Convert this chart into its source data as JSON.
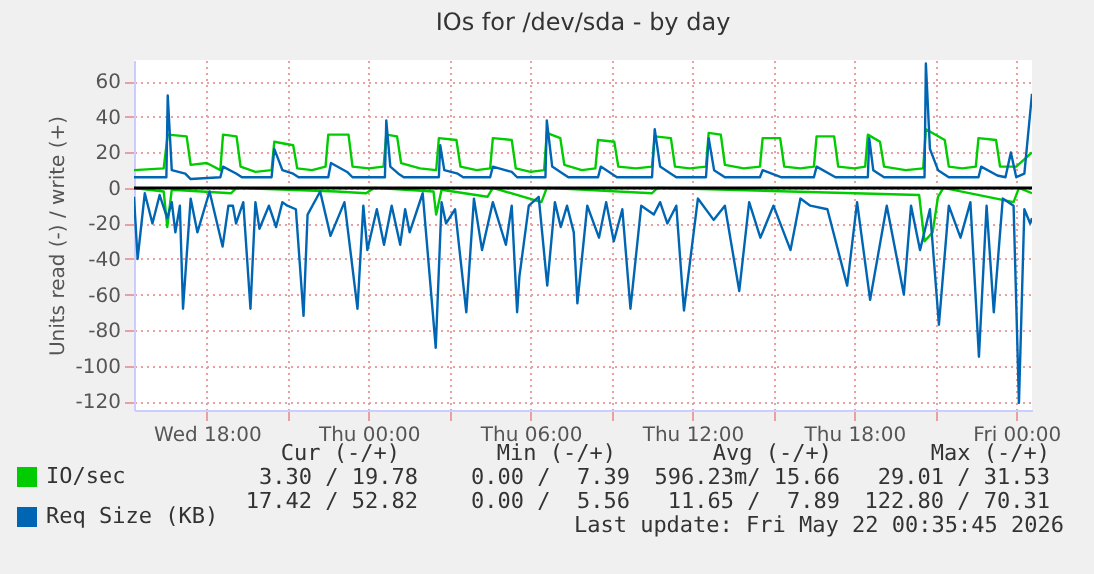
{
  "chart_data": {
    "type": "line",
    "title": "IOs for /dev/sda - by day",
    "ylabel": "Units read (-) / write (+)",
    "xlim": [
      "2026-05-20T15:18",
      "2026-05-22T00:35"
    ],
    "xticks": [
      {
        "value": "2026-05-20T18:00",
        "label": "Wed 18:00"
      },
      {
        "value": "2026-05-20T21:00",
        "label": null
      },
      {
        "value": "2026-05-21T00:00",
        "label": "Thu 00:00"
      },
      {
        "value": "2026-05-21T03:00",
        "label": null
      },
      {
        "value": "2026-05-21T06:00",
        "label": "Thu 06:00"
      },
      {
        "value": "2026-05-21T09:00",
        "label": null
      },
      {
        "value": "2026-05-21T12:00",
        "label": "Thu 12:00"
      },
      {
        "value": "2026-05-21T15:00",
        "label": null
      },
      {
        "value": "2026-05-21T18:00",
        "label": "Thu 18:00"
      },
      {
        "value": "2026-05-21T21:00",
        "label": null
      },
      {
        "value": "2026-05-22T00:00",
        "label": "Fri 00:00"
      }
    ],
    "ylim": [
      -125,
      72
    ],
    "yticks": [
      -120,
      -100,
      -80,
      -60,
      -40,
      -20,
      0,
      20,
      40,
      60
    ],
    "grid": true,
    "legend": "bottom",
    "marker": "none",
    "line_style": "solid",
    "ref_lines": [
      {
        "axis": "y",
        "value": 0,
        "color": "#000000"
      }
    ],
    "annotations": [
      "Cur (-/+)",
      "Min (-/+)",
      "Avg (-/+)",
      "Max (-/+)",
      "3.30 / 19.78",
      "0.00 /  7.39",
      "596.23m/ 15.66",
      "29.01 / 31.53",
      "17.42 / 52.82",
      "0.00 /  5.56",
      "11.65 /  7.89",
      "122.80 / 70.31",
      "Last update: Fri May 22 00:35:45 2026"
    ],
    "series": [
      {
        "color": "#00cc00",
        "x": [
          "2026-05-20T15:18",
          "2026-05-20T16:24",
          "2026-05-20T16:32",
          "2026-05-20T16:42",
          "2026-05-20T18:54",
          "2026-05-20T19:06",
          "2026-05-20T22:48",
          "2026-05-20T23:54",
          "2026-05-21T00:12",
          "2026-05-21T02:24",
          "2026-05-21T02:30",
          "2026-05-21T02:42",
          "2026-05-21T04:24",
          "2026-05-21T04:36",
          "2026-05-21T06:24",
          "2026-05-21T06:36",
          "2026-05-21T10:30",
          "2026-05-21T10:42",
          "2026-05-21T20:24",
          "2026-05-21T20:36",
          "2026-05-21T20:54",
          "2026-05-21T21:06",
          "2026-05-21T21:18",
          "2026-05-21T23:54",
          "2026-05-22T00:06",
          "2026-05-22T00:35"
        ],
        "values": [
          0,
          -2,
          -22,
          -1,
          -3,
          0,
          -2,
          -3,
          0,
          -2,
          -15,
          -1,
          -5,
          0,
          -8,
          0,
          -3,
          0,
          -4,
          -30,
          -25,
          -5,
          0,
          -8,
          0,
          -3
        ]
      },
      {
        "name": "IO/sec",
        "color": "#00cc00",
        "x": [
          "2026-05-20T15:18",
          "2026-05-20T16:24",
          "2026-05-20T16:33",
          "2026-05-20T17:15",
          "2026-05-20T17:24",
          "2026-05-20T18:00",
          "2026-05-20T18:30",
          "2026-05-20T18:36",
          "2026-05-20T19:06",
          "2026-05-20T19:15",
          "2026-05-20T19:48",
          "2026-05-20T20:24",
          "2026-05-20T20:30",
          "2026-05-20T21:12",
          "2026-05-20T21:21",
          "2026-05-20T21:54",
          "2026-05-20T22:24",
          "2026-05-20T22:30",
          "2026-05-20T23:15",
          "2026-05-20T23:24",
          "2026-05-21T00:00",
          "2026-05-21T00:33",
          "2026-05-21T00:39",
          "2026-05-21T01:03",
          "2026-05-21T01:12",
          "2026-05-21T01:54",
          "2026-05-21T02:30",
          "2026-05-21T02:36",
          "2026-05-21T03:15",
          "2026-05-21T03:24",
          "2026-05-21T04:00",
          "2026-05-21T04:30",
          "2026-05-21T04:36",
          "2026-05-21T05:18",
          "2026-05-21T05:27",
          "2026-05-21T06:00",
          "2026-05-21T06:30",
          "2026-05-21T06:36",
          "2026-05-21T07:06",
          "2026-05-21T07:15",
          "2026-05-21T07:54",
          "2026-05-21T08:24",
          "2026-05-21T08:30",
          "2026-05-21T09:06",
          "2026-05-21T09:15",
          "2026-05-21T09:54",
          "2026-05-21T10:30",
          "2026-05-21T10:36",
          "2026-05-21T11:12",
          "2026-05-21T11:21",
          "2026-05-21T11:54",
          "2026-05-21T12:30",
          "2026-05-21T12:36",
          "2026-05-21T13:03",
          "2026-05-21T13:12",
          "2026-05-21T13:54",
          "2026-05-21T14:30",
          "2026-05-21T14:36",
          "2026-05-21T15:15",
          "2026-05-21T15:24",
          "2026-05-21T16:00",
          "2026-05-21T16:30",
          "2026-05-21T16:36",
          "2026-05-21T17:15",
          "2026-05-21T17:24",
          "2026-05-21T18:00",
          "2026-05-21T18:24",
          "2026-05-21T18:30",
          "2026-05-21T18:57",
          "2026-05-21T19:06",
          "2026-05-21T19:54",
          "2026-05-21T20:33",
          "2026-05-21T20:39",
          "2026-05-21T21:21",
          "2026-05-21T21:30",
          "2026-05-21T22:00",
          "2026-05-21T22:30",
          "2026-05-21T22:36",
          "2026-05-21T23:15",
          "2026-05-21T23:24",
          "2026-05-22T00:00",
          "2026-05-22T00:35"
        ],
        "values": [
          10,
          11,
          30,
          29,
          13,
          14,
          10,
          30,
          29,
          12,
          9,
          10,
          26,
          24,
          11,
          10,
          12,
          30,
          30,
          12,
          11,
          12,
          30,
          29,
          14,
          11,
          10,
          28,
          27,
          12,
          10,
          11,
          28,
          27,
          11,
          9,
          10,
          31,
          28,
          13,
          10,
          11,
          27,
          26,
          12,
          11,
          12,
          29,
          28,
          12,
          11,
          12,
          31,
          30,
          13,
          11,
          12,
          28,
          28,
          12,
          11,
          12,
          29,
          29,
          12,
          11,
          12,
          30,
          26,
          12,
          10,
          11,
          33,
          27,
          12,
          11,
          12,
          28,
          27,
          12,
          12,
          20
        ]
      },
      {
        "color": "#0066b3",
        "x": [
          "2026-05-20T15:18",
          "2026-05-20T15:26",
          "2026-05-20T15:42",
          "2026-05-20T15:59",
          "2026-05-20T16:15",
          "2026-05-20T16:32",
          "2026-05-20T16:42",
          "2026-05-20T16:50",
          "2026-05-20T17:00",
          "2026-05-20T17:07",
          "2026-05-20T17:24",
          "2026-05-20T17:39",
          "2026-05-20T18:06",
          "2026-05-20T18:35",
          "2026-05-20T18:48",
          "2026-05-20T18:58",
          "2026-05-20T19:05",
          "2026-05-20T19:21",
          "2026-05-20T19:37",
          "2026-05-20T19:48",
          "2026-05-20T19:57",
          "2026-05-20T20:18",
          "2026-05-20T20:34",
          "2026-05-20T20:48",
          "2026-05-20T20:59",
          "2026-05-20T21:18",
          "2026-05-20T21:35",
          "2026-05-20T21:44",
          "2026-05-20T22:12",
          "2026-05-20T22:35",
          "2026-05-20T23:06",
          "2026-05-20T23:35",
          "2026-05-20T23:48",
          "2026-05-20T23:57",
          "2026-05-21T00:18",
          "2026-05-21T00:34",
          "2026-05-21T00:51",
          "2026-05-21T01:10",
          "2026-05-21T01:21",
          "2026-05-21T01:31",
          "2026-05-21T02:00",
          "2026-05-21T02:29",
          "2026-05-21T02:42",
          "2026-05-21T02:52",
          "2026-05-21T03:12",
          "2026-05-21T03:37",
          "2026-05-21T03:54",
          "2026-05-21T04:12",
          "2026-05-21T04:36",
          "2026-05-21T05:05",
          "2026-05-21T05:18",
          "2026-05-21T05:30",
          "2026-05-21T05:35",
          "2026-05-21T05:56",
          "2026-05-21T06:18",
          "2026-05-21T06:37",
          "2026-05-21T06:54",
          "2026-05-21T07:07",
          "2026-05-21T07:21",
          "2026-05-21T07:36",
          "2026-05-21T07:44",
          "2026-05-21T08:06",
          "2026-05-21T08:32",
          "2026-05-21T08:48",
          "2026-05-21T09:05",
          "2026-05-21T09:24",
          "2026-05-21T09:42",
          "2026-05-21T10:06",
          "2026-05-21T10:34",
          "2026-05-21T10:48",
          "2026-05-21T11:04",
          "2026-05-21T11:24",
          "2026-05-21T11:41",
          "2026-05-21T12:12",
          "2026-05-21T12:47",
          "2026-05-21T13:12",
          "2026-05-21T13:44",
          "2026-05-21T14:06",
          "2026-05-21T14:31",
          "2026-05-21T15:00",
          "2026-05-21T15:38",
          "2026-05-21T16:00",
          "2026-05-21T16:22",
          "2026-05-21T17:00",
          "2026-05-21T17:44",
          "2026-05-21T18:06",
          "2026-05-21T18:35",
          "2026-05-21T19:12",
          "2026-05-21T19:50",
          "2026-05-21T20:06",
          "2026-05-21T20:26",
          "2026-05-21T20:48",
          "2026-05-21T21:08",
          "2026-05-21T21:30",
          "2026-05-21T21:56",
          "2026-05-21T22:18",
          "2026-05-21T22:37",
          "2026-05-21T22:54",
          "2026-05-21T23:10",
          "2026-05-21T23:30",
          "2026-05-21T23:54",
          "2026-05-22T00:06",
          "2026-05-22T00:18",
          "2026-05-22T00:31",
          "2026-05-22T00:35"
        ],
        "values": [
          -5,
          -40,
          -3,
          -20,
          -4,
          -17,
          -8,
          -25,
          -10,
          -68,
          -6,
          -25,
          -2,
          -33,
          -10,
          -10,
          -20,
          -8,
          -68,
          -8,
          -23,
          -10,
          -22,
          -8,
          -10,
          -12,
          -72,
          -15,
          -2,
          -27,
          -8,
          -68,
          -10,
          -35,
          -12,
          -32,
          -10,
          -32,
          -12,
          -25,
          -3,
          -90,
          -8,
          -20,
          -12,
          -70,
          -6,
          -35,
          -8,
          -32,
          -10,
          -70,
          -50,
          -10,
          -5,
          -55,
          -8,
          -22,
          -10,
          -25,
          -65,
          -10,
          -28,
          -8,
          -30,
          -12,
          -68,
          -10,
          -15,
          -8,
          -20,
          -10,
          -69,
          -6,
          -18,
          -10,
          -58,
          -8,
          -28,
          -10,
          -35,
          -6,
          -10,
          -12,
          -55,
          -8,
          -63,
          -10,
          -60,
          -10,
          -35,
          -12,
          -77,
          -10,
          -28,
          -8,
          -95,
          -10,
          -70,
          -6,
          -10,
          -121,
          -12,
          -20,
          -17
        ]
      },
      {
        "name": "Req Size (KB)",
        "color": "#0066b3",
        "x": [
          "2026-05-20T15:18",
          "2026-05-20T16:30",
          "2026-05-20T16:33",
          "2026-05-20T16:42",
          "2026-05-20T17:12",
          "2026-05-20T17:24",
          "2026-05-20T18:30",
          "2026-05-20T18:36",
          "2026-05-20T19:06",
          "2026-05-20T19:18",
          "2026-05-20T20:24",
          "2026-05-20T20:30",
          "2026-05-20T20:48",
          "2026-05-20T21:12",
          "2026-05-20T21:24",
          "2026-05-20T22:30",
          "2026-05-20T22:36",
          "2026-05-20T23:12",
          "2026-05-20T23:24",
          "2026-05-21T00:36",
          "2026-05-21T00:39",
          "2026-05-21T00:48",
          "2026-05-21T01:06",
          "2026-05-21T01:18",
          "2026-05-21T02:36",
          "2026-05-21T02:39",
          "2026-05-21T02:48",
          "2026-05-21T03:18",
          "2026-05-21T03:30",
          "2026-05-21T04:30",
          "2026-05-21T04:36",
          "2026-05-21T05:18",
          "2026-05-21T05:30",
          "2026-05-21T06:33",
          "2026-05-21T06:36",
          "2026-05-21T06:48",
          "2026-05-21T07:12",
          "2026-05-21T07:24",
          "2026-05-21T08:30",
          "2026-05-21T08:36",
          "2026-05-21T09:12",
          "2026-05-21T10:30",
          "2026-05-21T10:36",
          "2026-05-21T10:48",
          "2026-05-21T11:12",
          "2026-05-21T11:24",
          "2026-05-21T12:30",
          "2026-05-21T12:36",
          "2026-05-21T12:48",
          "2026-05-21T13:12",
          "2026-05-21T14:30",
          "2026-05-21T14:36",
          "2026-05-21T15:18",
          "2026-05-21T16:30",
          "2026-05-21T16:36",
          "2026-05-21T17:18",
          "2026-05-21T18:30",
          "2026-05-21T18:33",
          "2026-05-21T18:42",
          "2026-05-21T19:06",
          "2026-05-21T20:36",
          "2026-05-21T20:39",
          "2026-05-21T20:48",
          "2026-05-21T21:06",
          "2026-05-21T21:30",
          "2026-05-21T22:36",
          "2026-05-21T22:42",
          "2026-05-21T23:18",
          "2026-05-21T23:36",
          "2026-05-21T23:48",
          "2026-05-22T00:00",
          "2026-05-22T00:18",
          "2026-05-22T00:35"
        ],
        "values": [
          6,
          6,
          52,
          10,
          8,
          5,
          6,
          12,
          8,
          6,
          6,
          22,
          10,
          8,
          6,
          6,
          14,
          9,
          6,
          6,
          38,
          12,
          8,
          6,
          6,
          24,
          10,
          8,
          6,
          6,
          12,
          9,
          6,
          6,
          38,
          12,
          8,
          6,
          6,
          12,
          6,
          6,
          33,
          12,
          8,
          6,
          6,
          28,
          10,
          6,
          6,
          10,
          6,
          6,
          12,
          6,
          6,
          28,
          10,
          6,
          6,
          70,
          22,
          10,
          6,
          6,
          12,
          7,
          6,
          20,
          6,
          8,
          53
        ]
      }
    ]
  }
}
